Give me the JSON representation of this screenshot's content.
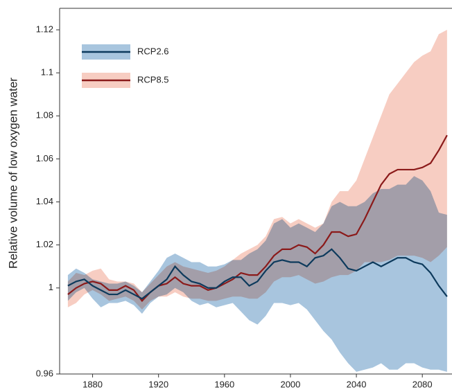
{
  "chart_data": {
    "type": "band-line",
    "y_label": "Relative volume of low oxygen water",
    "x": [
      1865,
      1870,
      1875,
      1880,
      1885,
      1890,
      1895,
      1900,
      1905,
      1910,
      1915,
      1920,
      1925,
      1930,
      1935,
      1940,
      1945,
      1950,
      1955,
      1960,
      1965,
      1970,
      1975,
      1980,
      1985,
      1990,
      1995,
      2000,
      2005,
      2010,
      2015,
      2020,
      2025,
      2030,
      2035,
      2040,
      2045,
      2050,
      2055,
      2060,
      2065,
      2070,
      2075,
      2080,
      2085,
      2090,
      2095
    ],
    "xlim": [
      1860,
      2098
    ],
    "xticks": [
      1880,
      1920,
      1960,
      2000,
      2040,
      2080
    ],
    "ylim": [
      0.96,
      1.13
    ],
    "yticks": [
      0.96,
      1.0,
      1.02,
      1.04,
      1.06,
      1.08,
      1.1,
      1.12
    ],
    "legend": "upper left",
    "series": [
      {
        "name": "RCP8.5",
        "color": "#8b1a1a",
        "band_color": "#f7cdc2",
        "values": [
          0.997,
          1.0,
          1.002,
          1.003,
          1.002,
          0.999,
          0.999,
          1.001,
          0.999,
          0.994,
          0.998,
          1.001,
          1.002,
          1.005,
          1.002,
          1.001,
          1.001,
          0.999,
          1.0,
          1.002,
          1.004,
          1.007,
          1.006,
          1.006,
          1.01,
          1.015,
          1.018,
          1.018,
          1.02,
          1.019,
          1.016,
          1.02,
          1.026,
          1.026,
          1.024,
          1.025,
          1.032,
          1.04,
          1.048,
          1.053,
          1.055,
          1.055,
          1.055,
          1.056,
          1.058,
          1.064,
          1.071
        ],
        "upper": [
          1.003,
          1.007,
          1.006,
          1.008,
          1.009,
          1.004,
          1.003,
          1.003,
          1.002,
          0.998,
          1.002,
          1.006,
          1.01,
          1.012,
          1.01,
          1.009,
          1.008,
          1.007,
          1.008,
          1.01,
          1.013,
          1.016,
          1.018,
          1.02,
          1.024,
          1.032,
          1.033,
          1.03,
          1.032,
          1.03,
          1.028,
          1.03,
          1.04,
          1.045,
          1.045,
          1.05,
          1.06,
          1.07,
          1.08,
          1.09,
          1.095,
          1.1,
          1.105,
          1.108,
          1.11,
          1.118,
          1.12
        ],
        "lower": [
          0.991,
          0.993,
          0.997,
          0.999,
          0.997,
          0.994,
          0.995,
          0.996,
          0.994,
          0.99,
          0.994,
          0.996,
          0.996,
          0.998,
          0.996,
          0.995,
          0.995,
          0.994,
          0.994,
          0.995,
          0.996,
          0.996,
          0.995,
          0.995,
          0.998,
          1.003,
          1.005,
          1.005,
          1.006,
          1.004,
          1.002,
          1.003,
          1.005,
          1.006,
          1.006,
          1.008,
          1.012,
          1.012,
          1.012,
          1.013,
          1.015,
          1.015,
          1.015,
          1.014,
          1.012,
          1.015,
          1.019
        ]
      },
      {
        "name": "RCP2.6",
        "color": "#0d3a5c",
        "band_color": "#a8c5de",
        "values": [
          1.001,
          1.003,
          1.004,
          1.001,
          0.999,
          0.997,
          0.997,
          0.999,
          0.997,
          0.995,
          0.998,
          1.001,
          1.004,
          1.01,
          1.006,
          1.003,
          1.002,
          1.0,
          1.0,
          1.003,
          1.005,
          1.005,
          1.001,
          1.003,
          1.008,
          1.012,
          1.013,
          1.012,
          1.012,
          1.01,
          1.014,
          1.015,
          1.018,
          1.014,
          1.009,
          1.008,
          1.01,
          1.012,
          1.01,
          1.012,
          1.014,
          1.014,
          1.012,
          1.011,
          1.007,
          1.001,
          0.996
        ],
        "upper": [
          1.006,
          1.009,
          1.007,
          1.004,
          1.003,
          1.002,
          1.002,
          1.003,
          1.001,
          0.998,
          1.003,
          1.008,
          1.014,
          1.016,
          1.014,
          1.012,
          1.012,
          1.01,
          1.01,
          1.011,
          1.013,
          1.013,
          1.016,
          1.018,
          1.022,
          1.03,
          1.032,
          1.028,
          1.03,
          1.028,
          1.026,
          1.03,
          1.038,
          1.04,
          1.038,
          1.038,
          1.04,
          1.044,
          1.046,
          1.046,
          1.048,
          1.048,
          1.052,
          1.05,
          1.045,
          1.035,
          1.034
        ],
        "lower": [
          0.994,
          0.998,
          1.0,
          0.995,
          0.991,
          0.993,
          0.993,
          0.994,
          0.992,
          0.988,
          0.993,
          0.996,
          0.997,
          1.0,
          0.998,
          0.994,
          0.992,
          0.993,
          0.991,
          0.992,
          0.993,
          0.989,
          0.985,
          0.983,
          0.987,
          0.993,
          0.993,
          0.992,
          0.993,
          0.99,
          0.985,
          0.98,
          0.976,
          0.97,
          0.965,
          0.961,
          0.962,
          0.963,
          0.965,
          0.962,
          0.962,
          0.965,
          0.965,
          0.963,
          0.962,
          0.962,
          0.961
        ]
      }
    ]
  }
}
